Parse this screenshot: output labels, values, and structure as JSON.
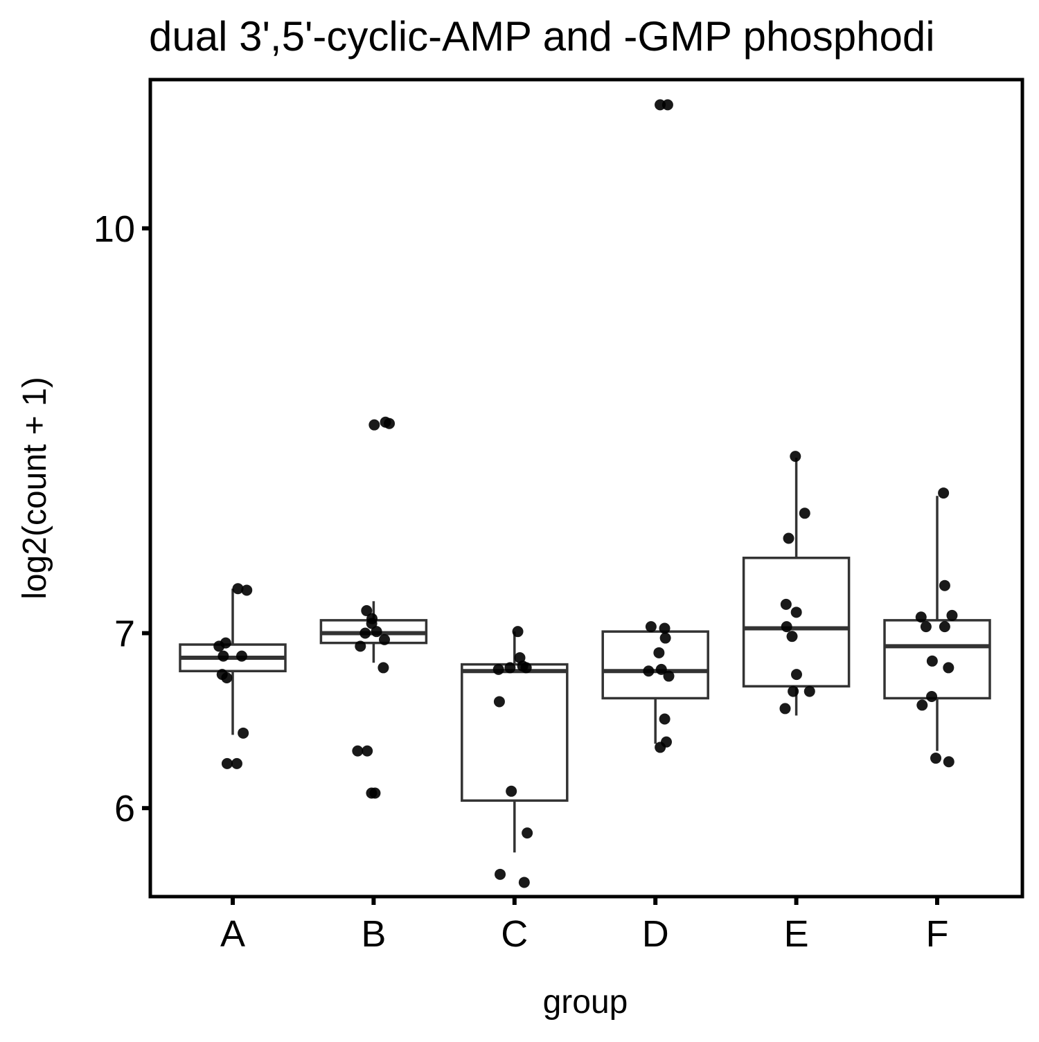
{
  "chart_data": {
    "type": "box",
    "title": "dual 3',5'-cyclic-AMP and -GMP phosphodi",
    "xlabel": "group",
    "ylabel": "log2(count + 1)",
    "scale": "log",
    "ylim": [
      5.55,
      11.4
    ],
    "yticks": [
      6,
      7,
      10
    ],
    "categories": [
      "A",
      "B",
      "C",
      "D",
      "E",
      "F"
    ],
    "grid": false,
    "legend": "none",
    "colors": {
      "box_stroke": "#333333",
      "point": "#000000",
      "axis": "#000000"
    },
    "boxes": [
      {
        "group": "A",
        "whisker_low": 6.4,
        "q1": 6.77,
        "median": 6.85,
        "q3": 6.93,
        "whisker_high": 7.28
      },
      {
        "group": "B",
        "whisker_low": 6.82,
        "q1": 6.94,
        "median": 7.0,
        "q3": 7.08,
        "whisker_high": 7.2
      },
      {
        "group": "C",
        "whisker_low": 5.77,
        "q1": 6.04,
        "median": 6.77,
        "q3": 6.81,
        "whisker_high": 7.01
      },
      {
        "group": "D",
        "whisker_low": 6.35,
        "q1": 6.61,
        "median": 6.77,
        "q3": 7.01,
        "whisker_high": 7.01
      },
      {
        "group": "E",
        "whisker_low": 6.51,
        "q1": 6.68,
        "median": 7.03,
        "q3": 7.48,
        "whisker_high": 8.17
      },
      {
        "group": "F",
        "whisker_low": 6.31,
        "q1": 6.61,
        "median": 6.92,
        "q3": 7.08,
        "whisker_high": 7.9
      }
    ],
    "points": [
      {
        "group": "A",
        "values": [
          7.28,
          7.27,
          6.94,
          6.92,
          6.86,
          6.86,
          6.75,
          6.73,
          6.41,
          6.24,
          6.24
        ]
      },
      {
        "group": "B",
        "values": [
          8.43,
          8.42,
          8.41,
          7.14,
          7.09,
          7.06,
          7.01,
          7.0,
          6.96,
          6.92,
          6.79,
          6.31,
          6.31,
          6.08,
          6.08
        ]
      },
      {
        "group": "C",
        "values": [
          7.01,
          6.85,
          6.8,
          6.79,
          6.79,
          6.78,
          6.59,
          6.09,
          5.87,
          5.66,
          5.62
        ]
      },
      {
        "group": "D",
        "values": [
          11.15,
          11.15,
          7.04,
          7.03,
          6.97,
          6.88,
          6.78,
          6.77,
          6.74,
          6.49,
          6.36,
          6.33
        ]
      },
      {
        "group": "E",
        "values": [
          8.18,
          7.78,
          7.61,
          7.18,
          7.13,
          7.04,
          6.98,
          6.75,
          6.65,
          6.65,
          6.55
        ]
      },
      {
        "group": "F",
        "values": [
          7.92,
          7.3,
          7.11,
          7.1,
          7.04,
          7.04,
          6.83,
          6.79,
          6.62,
          6.57,
          6.27,
          6.25
        ]
      }
    ]
  }
}
